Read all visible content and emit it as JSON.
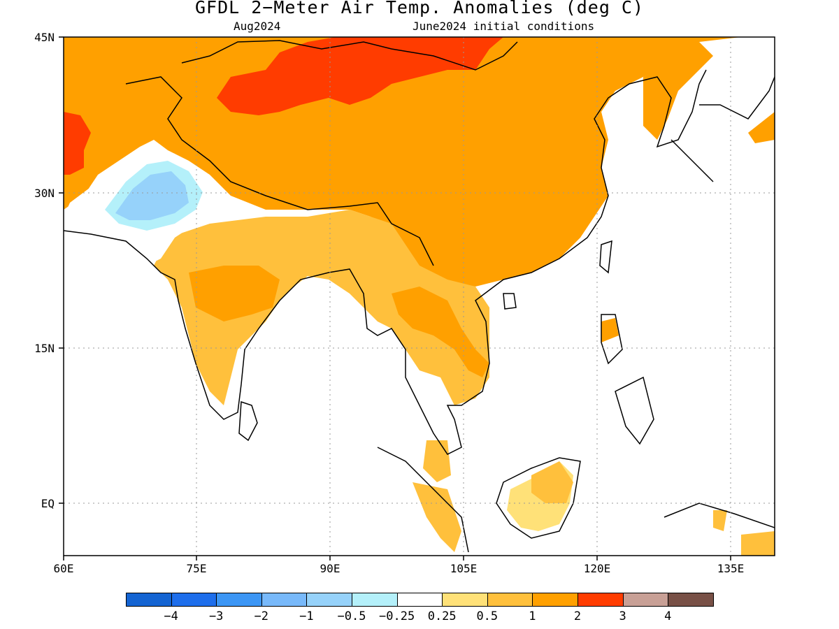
{
  "header": {
    "title": "GFDL 2−Meter Air Temp. Anomalies (deg C)",
    "valid_month": "Aug2024",
    "initial_conditions": "June2024 initial conditions"
  },
  "map": {
    "region": "South and East Asia",
    "lon_range": [
      60,
      140
    ],
    "lat_range": [
      -6,
      45
    ],
    "lat_labels": [
      "45N",
      "30N",
      "15N",
      "EQ"
    ],
    "lon_labels": [
      "60E",
      "75E",
      "90E",
      "105E",
      "120E",
      "135E"
    ],
    "features": [
      {
        "label": "strongest warm anomaly (2 to 3 C)",
        "area": "Mongolia and northwest China",
        "category": "2 to 3"
      },
      {
        "label": "warm anomaly (1 to 2 C)",
        "area": "China, Tibet, Korea, Japan coast",
        "category": "1 to 2"
      },
      {
        "label": "moderate warm anomaly (0.5 to 1 C)",
        "area": "India, Indochina, Borneo",
        "category": "0.5 to 1"
      },
      {
        "label": "cool anomaly (-1 to -0.25 C)",
        "area": "Pakistan and northwest India",
        "category": "-1 to -0.25"
      },
      {
        "label": "ocean and near-normal",
        "area": "oceans",
        "category": "none"
      }
    ]
  },
  "colorbar": {
    "colors": [
      "#1464d2",
      "#1e6eeb",
      "#3c96f5",
      "#78b9fa",
      "#96d2fa",
      "#b4f0fa",
      "#ffffff",
      "#ffe178",
      "#ffc03c",
      "#ffa000",
      "#ff3c00",
      "#c8a096",
      "#785046"
    ],
    "labels": [
      "−4",
      "−3",
      "−2",
      "−1",
      "−0.5",
      "−0.25",
      "0.25",
      "0.5",
      "1",
      "2",
      "3",
      "4"
    ]
  }
}
